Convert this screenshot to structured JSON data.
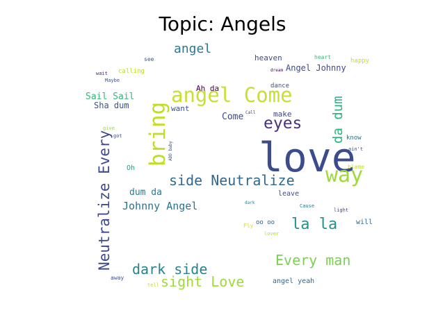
{
  "title": "Topic: Angels",
  "words": [
    {
      "text": "love",
      "color": "#3b4c8c"
    },
    {
      "text": "angel Come",
      "color": "#c8df34"
    },
    {
      "text": "way",
      "color": "#a0da39"
    },
    {
      "text": "eyes",
      "color": "#46327e"
    },
    {
      "text": "bring",
      "color": "#bddf26"
    },
    {
      "text": "side Neutralize",
      "color": "#31688e"
    },
    {
      "text": "Neutralize Every",
      "color": "#3e4a89"
    },
    {
      "text": "la la",
      "color": "#21918c"
    },
    {
      "text": "Every man",
      "color": "#7ad151"
    },
    {
      "text": "dark side",
      "color": "#26828e"
    },
    {
      "text": "sight Love",
      "color": "#9fda3a"
    },
    {
      "text": "da dum",
      "color": "#2db27d"
    },
    {
      "text": "angel",
      "color": "#2a788e"
    },
    {
      "text": "Johnny Angel",
      "color": "#2c728e"
    },
    {
      "text": "dum da",
      "color": "#2a788e"
    },
    {
      "text": "Sail Sail",
      "color": "#35b779"
    },
    {
      "text": "Sha dum",
      "color": "#3b528b"
    },
    {
      "text": "Angel Johnny",
      "color": "#3e4989"
    },
    {
      "text": "heaven",
      "color": "#3e4a89"
    },
    {
      "text": "Come",
      "color": "#3e4989"
    },
    {
      "text": "make",
      "color": "#414487"
    },
    {
      "text": "want",
      "color": "#3b528b"
    },
    {
      "text": "Ah da",
      "color": "#440154"
    },
    {
      "text": "dance",
      "color": "#3b528b"
    },
    {
      "text": "Oh",
      "color": "#1fa187"
    },
    {
      "text": "leave",
      "color": "#3e4a89"
    },
    {
      "text": "oo oo",
      "color": "#365c8d"
    },
    {
      "text": "will",
      "color": "#31688e"
    },
    {
      "text": "angel yeah",
      "color": "#31688e"
    },
    {
      "text": "calling",
      "color": "#b5de2b"
    },
    {
      "text": "see",
      "color": "#3b528b"
    },
    {
      "text": "wait",
      "color": "#482173"
    },
    {
      "text": "Maybe",
      "color": "#3b528b"
    },
    {
      "text": "heart",
      "color": "#37b878"
    },
    {
      "text": "happy",
      "color": "#c0df25"
    },
    {
      "text": "dream",
      "color": "#440154"
    },
    {
      "text": "know",
      "color": "#2c728e"
    },
    {
      "text": "ain't",
      "color": "#3b528b"
    },
    {
      "text": "blame",
      "color": "#bddf26"
    },
    {
      "text": "give",
      "color": "#95d840"
    },
    {
      "text": "got",
      "color": "#3b528b"
    },
    {
      "text": "ADD baby",
      "color": "#3b528b"
    },
    {
      "text": "Call",
      "color": "#46337e"
    },
    {
      "text": "dark",
      "color": "#26828e"
    },
    {
      "text": "Cause",
      "color": "#2a788e"
    },
    {
      "text": "light",
      "color": "#3e4a89"
    },
    {
      "text": "Fly",
      "color": "#d8e219"
    },
    {
      "text": "lover",
      "color": "#b0dd2f"
    },
    {
      "text": "away",
      "color": "#3b528b"
    },
    {
      "text": "tell",
      "color": "#bddf26"
    }
  ]
}
